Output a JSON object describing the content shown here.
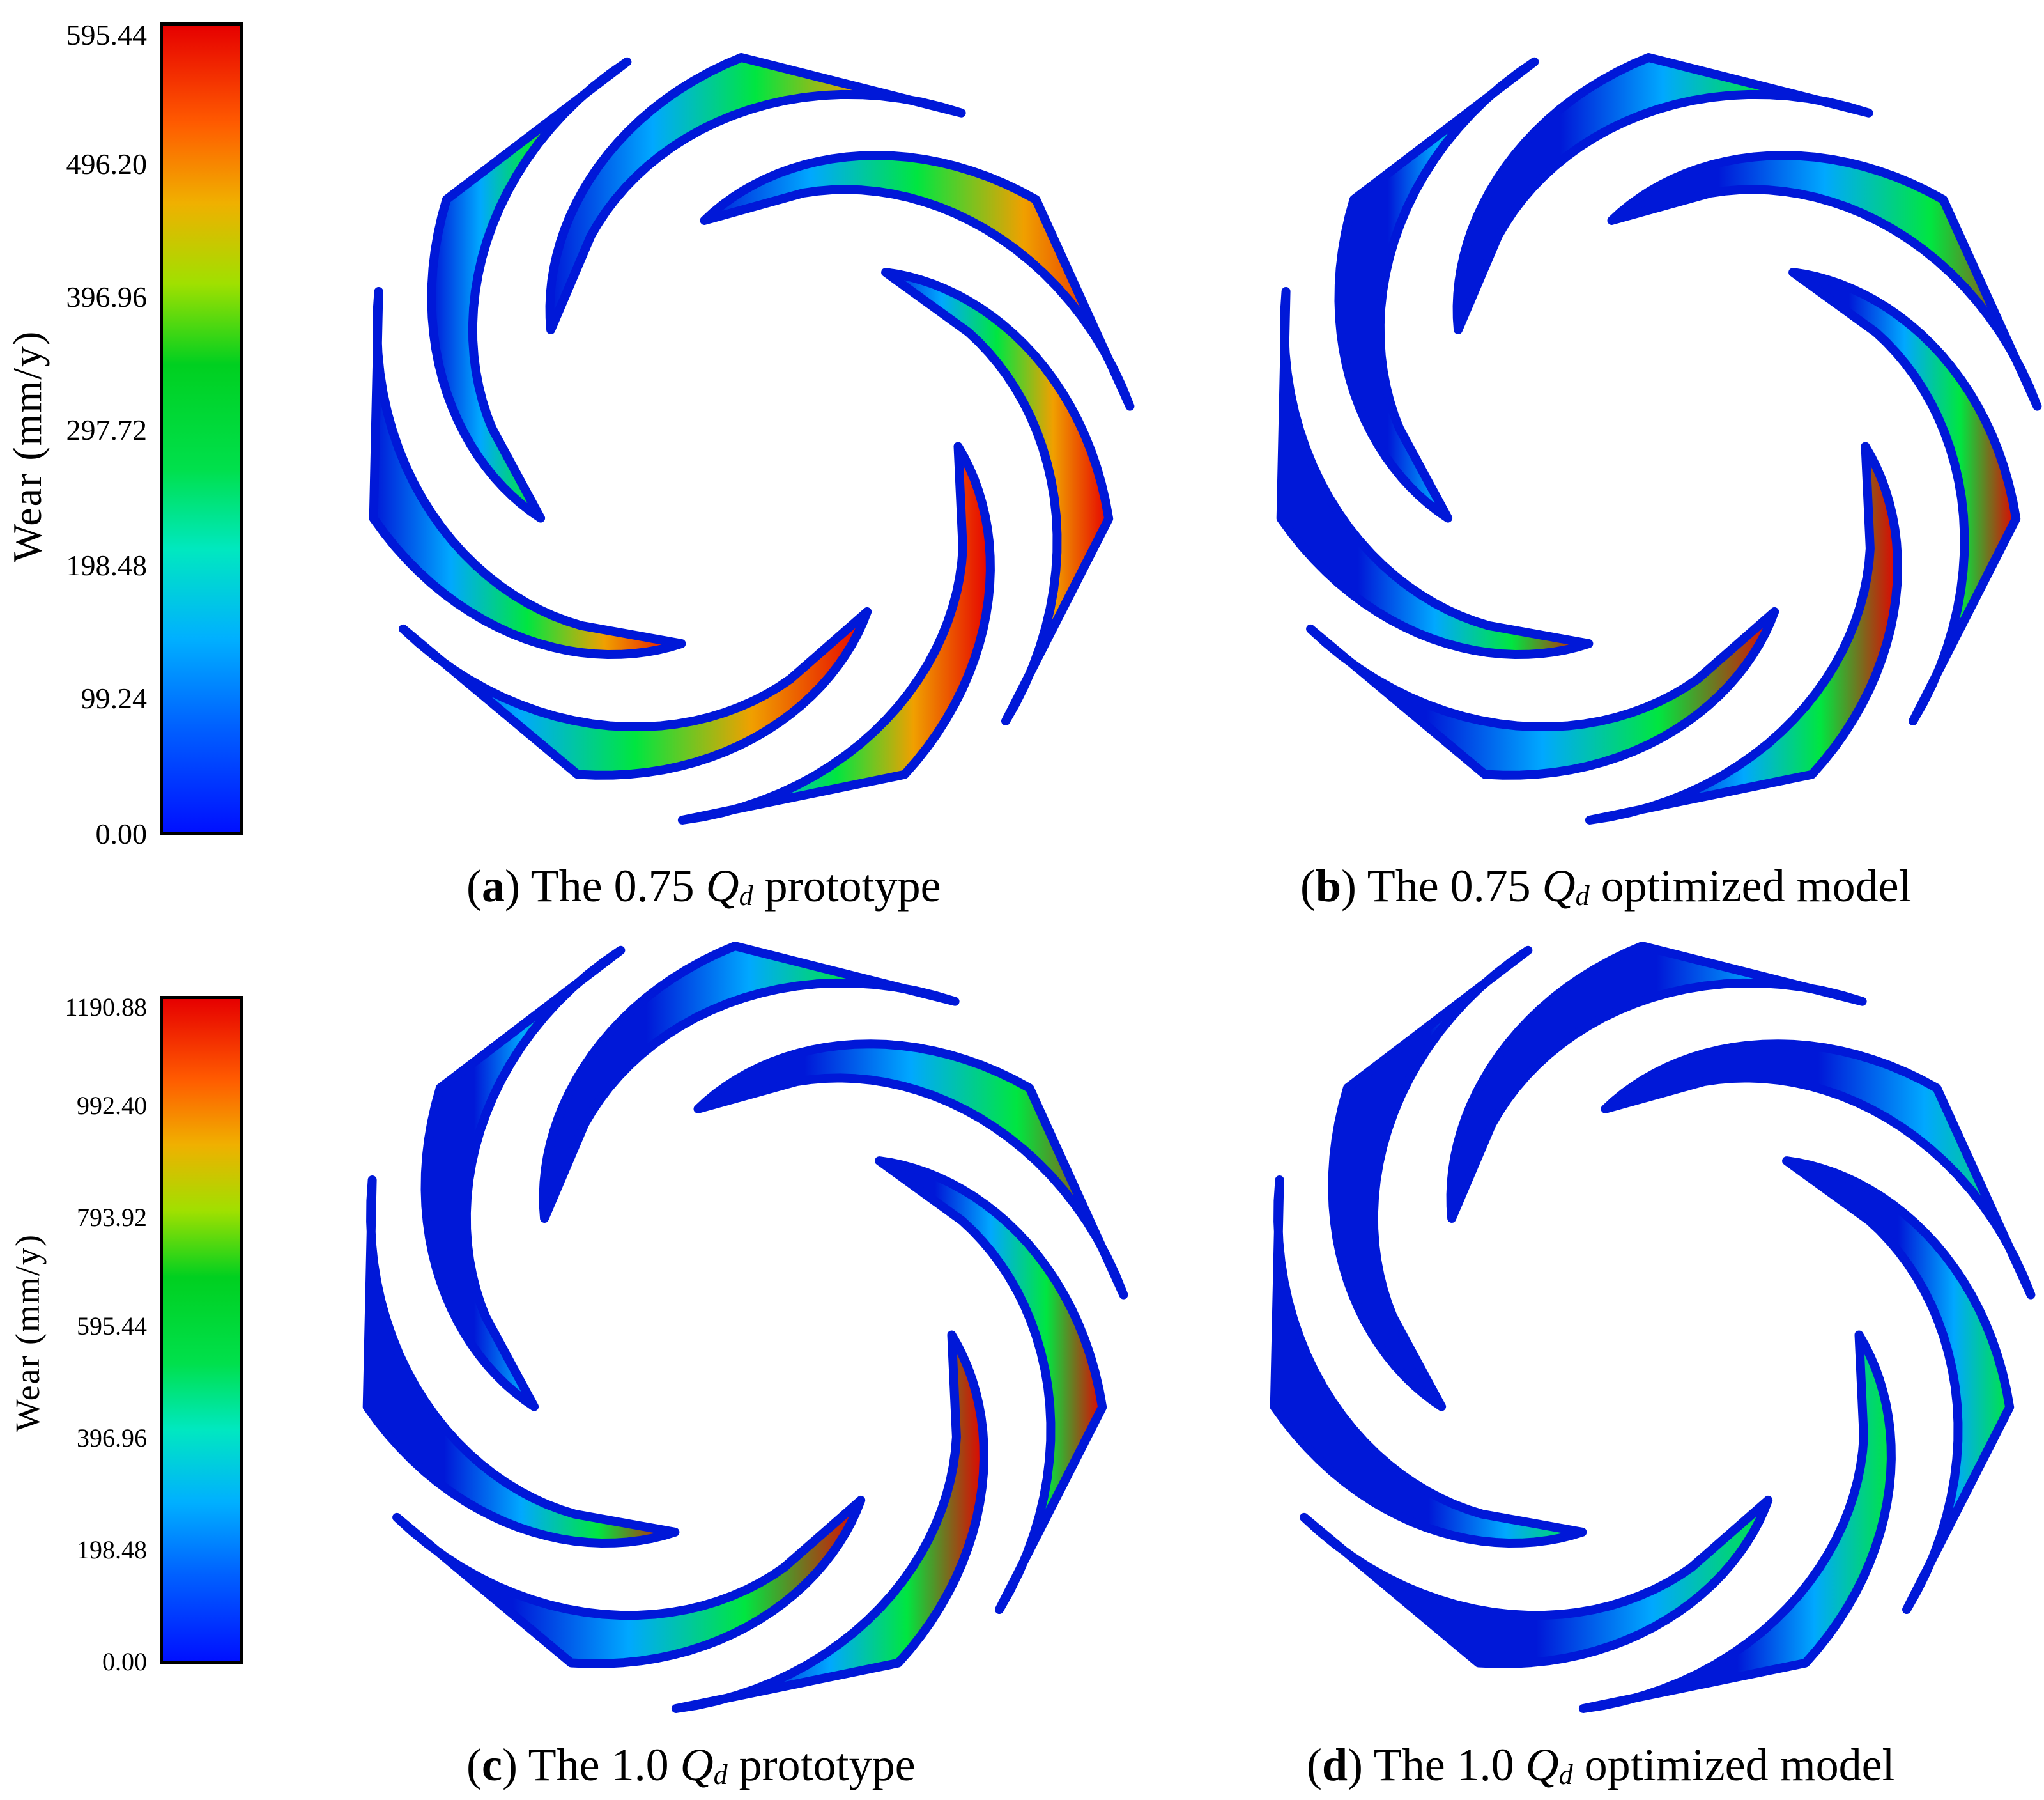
{
  "colorbars": [
    {
      "title": "Wear (mm/y)",
      "ticks": [
        "595.44",
        "496.20",
        "396.96",
        "297.72",
        "198.48",
        "99.24",
        "0.00"
      ],
      "min": 0.0,
      "max": 595.44
    },
    {
      "title": "Wear (mm/y)",
      "ticks": [
        "1190.88",
        "992.40",
        "793.92",
        "595.44",
        "396.96",
        "198.48",
        "0.00"
      ],
      "min": 0.0,
      "max": 1190.88
    }
  ],
  "panels": [
    {
      "letter": "a",
      "open": "(",
      "close": ")",
      "pre": " The 0.75 ",
      "q": "Q",
      "sub": "d",
      "post": " prototype",
      "wear_level": "high"
    },
    {
      "letter": "b",
      "open": "(",
      "close": ")",
      "pre": " The 0.75 ",
      "q": "Q",
      "sub": "d",
      "post": " optimized model",
      "wear_level": "medium"
    },
    {
      "letter": "c",
      "open": "(",
      "close": ")",
      "pre": " The 1.0 ",
      "q": "Q",
      "sub": "d",
      "post": " prototype",
      "wear_level": "medium"
    },
    {
      "letter": "d",
      "open": "(",
      "close": ")",
      "pre": " The 1.0 ",
      "q": "Q",
      "sub": "d",
      "post": " optimized model",
      "wear_level": "low"
    }
  ],
  "colors": {
    "low": "#0018d8",
    "mid_low": "#00a8ff",
    "mid": "#00e640",
    "mid_high": "#f0a000",
    "high": "#e60000"
  }
}
